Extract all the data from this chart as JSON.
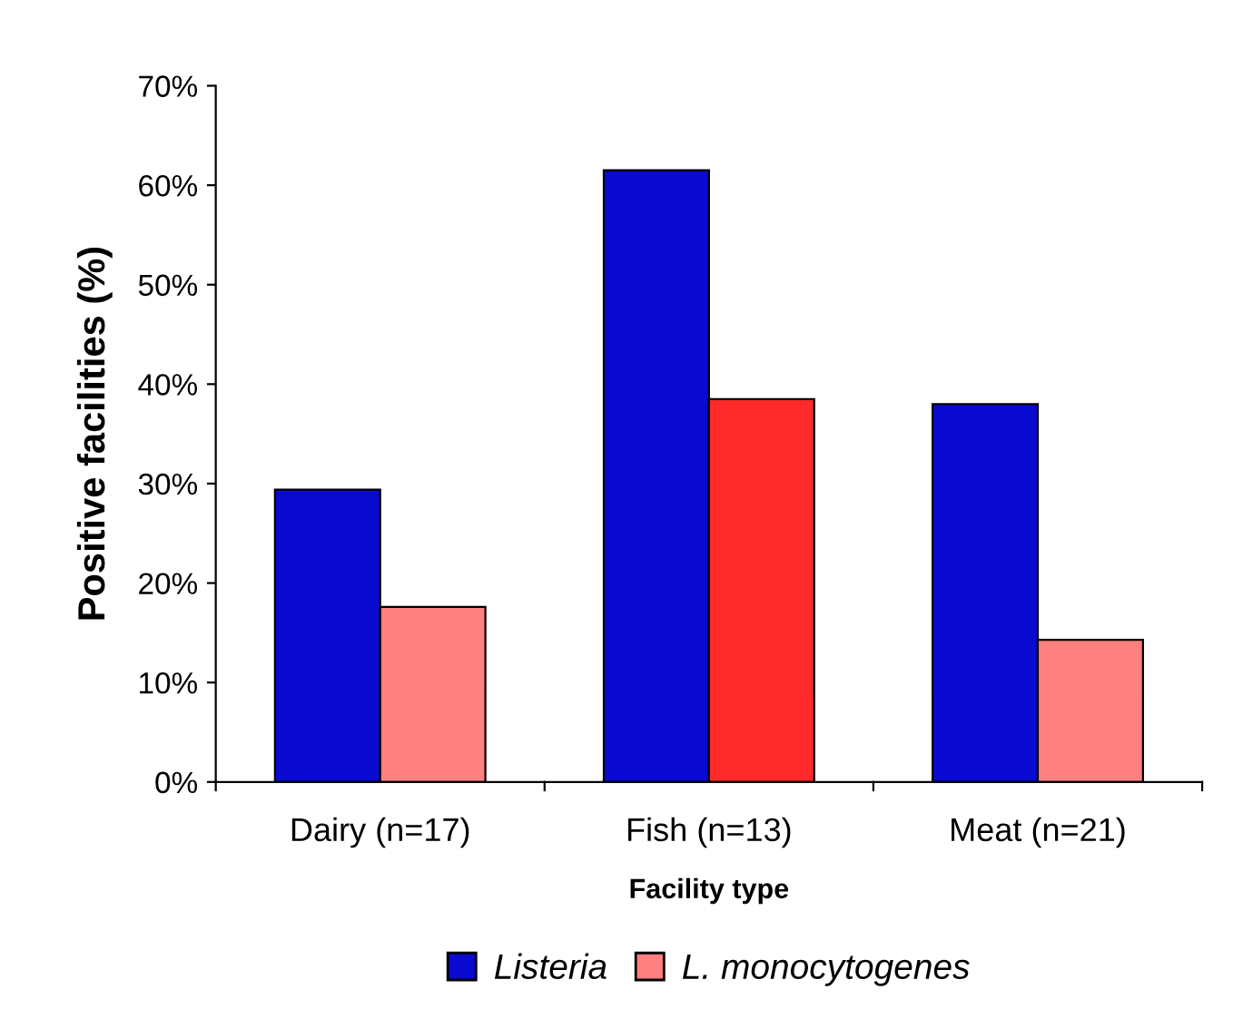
{
  "chart_data": {
    "type": "bar",
    "xlabel": "Facility type",
    "ylabel": "Positive facilities (%)",
    "categories": [
      "Dairy (n=17)",
      "Fish (n=13)",
      "Meat (n=21)"
    ],
    "series": [
      {
        "name": "Listeria",
        "color": "#0a0ad0",
        "values": [
          29.4,
          61.5,
          38
        ]
      },
      {
        "name": "L. monocytogenes",
        "color": "#ff8080",
        "colors": [
          "#ff8080",
          "#ff2a2a",
          "#ff8080"
        ],
        "values": [
          17.6,
          38.5,
          14.3
        ]
      }
    ],
    "ylim": [
      0,
      70
    ],
    "yticks": [
      {
        "value": 0,
        "label": "0%"
      },
      {
        "value": 10,
        "label": "10%"
      },
      {
        "value": 20,
        "label": "20%"
      },
      {
        "value": 30,
        "label": "30%"
      },
      {
        "value": 40,
        "label": "40%"
      },
      {
        "value": 50,
        "label": "50%"
      },
      {
        "value": 60,
        "label": "60%"
      },
      {
        "value": 70,
        "label": "70%"
      }
    ],
    "grid": false,
    "legend": "bottom"
  }
}
